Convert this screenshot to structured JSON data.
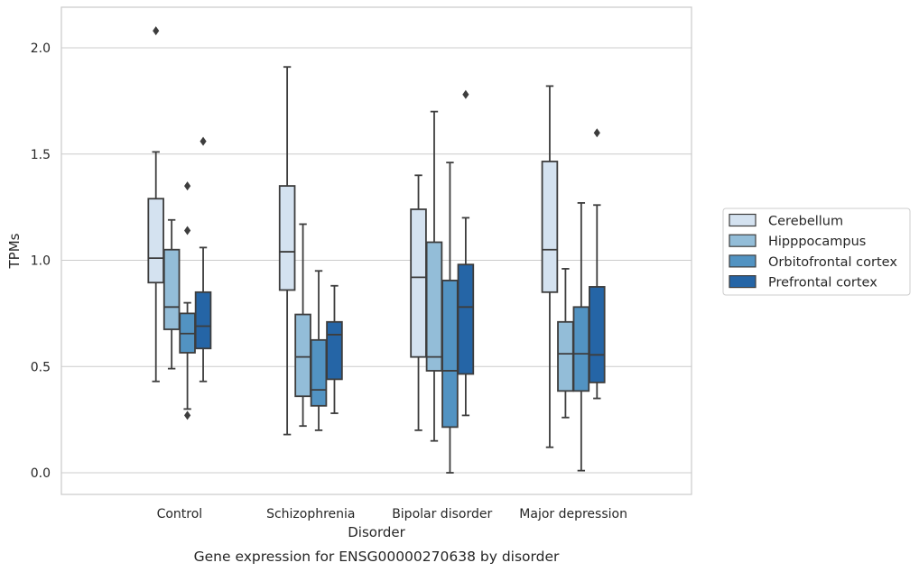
{
  "chart_data": {
    "type": "boxplot",
    "caption": "Gene expression for ENSG00000270638 by disorder",
    "xlabel": "Disorder",
    "ylabel": "TPMs",
    "ylim": [
      -0.1,
      2.2
    ],
    "yticks": [
      0.0,
      0.5,
      1.0,
      1.5,
      2.0
    ],
    "ytick_labels": [
      "0.0",
      "0.5",
      "1.0",
      "1.5",
      "2.0"
    ],
    "grid": true,
    "legend_position": "right",
    "categories": [
      "Control",
      "Schizophrenia",
      "Bipolar disorder",
      "Major depression"
    ],
    "series": [
      {
        "name": "Cerebellum",
        "color": "#d4e2f0",
        "boxes": [
          {
            "whislo": 0.43,
            "q1": 0.895,
            "med": 1.01,
            "q3": 1.29,
            "whishi": 1.51,
            "fliers": [
              2.08
            ]
          },
          {
            "whislo": 0.18,
            "q1": 0.86,
            "med": 1.04,
            "q3": 1.35,
            "whishi": 1.91,
            "fliers": []
          },
          {
            "whislo": 0.2,
            "q1": 0.545,
            "med": 0.92,
            "q3": 1.24,
            "whishi": 1.4,
            "fliers": []
          },
          {
            "whislo": 0.12,
            "q1": 0.85,
            "med": 1.05,
            "q3": 1.465,
            "whishi": 1.82,
            "fliers": []
          }
        ]
      },
      {
        "name": "Hipppocampus",
        "color": "#93bdd8",
        "boxes": [
          {
            "whislo": 0.49,
            "q1": 0.675,
            "med": 0.78,
            "q3": 1.05,
            "whishi": 1.19,
            "fliers": []
          },
          {
            "whislo": 0.22,
            "q1": 0.36,
            "med": 0.545,
            "q3": 0.745,
            "whishi": 1.17,
            "fliers": []
          },
          {
            "whislo": 0.15,
            "q1": 0.48,
            "med": 0.545,
            "q3": 1.085,
            "whishi": 1.7,
            "fliers": []
          },
          {
            "whislo": 0.26,
            "q1": 0.385,
            "med": 0.56,
            "q3": 0.71,
            "whishi": 0.96,
            "fliers": []
          }
        ]
      },
      {
        "name": "Orbitofrontal cortex",
        "color": "#5293c2",
        "boxes": [
          {
            "whislo": 0.3,
            "q1": 0.565,
            "med": 0.655,
            "q3": 0.75,
            "whishi": 0.8,
            "fliers": [
              0.27,
              1.14,
              1.35
            ]
          },
          {
            "whislo": 0.2,
            "q1": 0.315,
            "med": 0.39,
            "q3": 0.625,
            "whishi": 0.95,
            "fliers": []
          },
          {
            "whislo": 0.0,
            "q1": 0.215,
            "med": 0.48,
            "q3": 0.905,
            "whishi": 1.46,
            "fliers": []
          },
          {
            "whislo": 0.01,
            "q1": 0.385,
            "med": 0.56,
            "q3": 0.78,
            "whishi": 1.27,
            "fliers": []
          }
        ]
      },
      {
        "name": "Prefrontal cortex",
        "color": "#2565a6",
        "boxes": [
          {
            "whislo": 0.43,
            "q1": 0.585,
            "med": 0.69,
            "q3": 0.85,
            "whishi": 1.06,
            "fliers": [
              1.56
            ]
          },
          {
            "whislo": 0.28,
            "q1": 0.44,
            "med": 0.65,
            "q3": 0.71,
            "whishi": 0.88,
            "fliers": []
          },
          {
            "whislo": 0.27,
            "q1": 0.465,
            "med": 0.78,
            "q3": 0.98,
            "whishi": 1.2,
            "fliers": [
              1.78
            ]
          },
          {
            "whislo": 0.35,
            "q1": 0.425,
            "med": 0.555,
            "q3": 0.875,
            "whishi": 1.26,
            "fliers": [
              1.6
            ]
          }
        ]
      }
    ]
  }
}
